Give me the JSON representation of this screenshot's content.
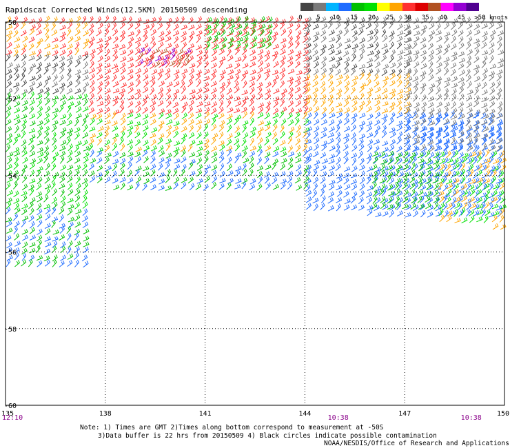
{
  "chart_data": {
    "type": "scatter",
    "title": "Rapidscat Corrected Winds(12.5KM) 20150509 descending",
    "xlim": [
      135,
      150
    ],
    "ylim": [
      -60,
      -50
    ],
    "x_ticks": [
      "135",
      "138",
      "141",
      "144",
      "147",
      "150"
    ],
    "y_ticks": [
      "-50",
      "-52",
      "-54",
      "-56",
      "-58",
      "-60"
    ],
    "grid": true,
    "legend": {
      "placement": "top-right",
      "labels": [
        "0",
        "5",
        "10",
        "15",
        "20",
        "25",
        "30",
        "35",
        "40",
        "45",
        ">50 knots"
      ],
      "colors": [
        "#444444",
        "#7a7a7a",
        "#00b4ff",
        "#1e6bff",
        "#00c000",
        "#00e000",
        "#ffff00",
        "#ffa500",
        "#ff3030",
        "#dd0000",
        "#b05020",
        "#ff00ff",
        "#9400d3",
        "#500090"
      ]
    },
    "time_labels": [
      {
        "x": 135,
        "label": "12:10"
      },
      {
        "x": 145,
        "label": "10:38"
      },
      {
        "x": 149,
        "label": "10:38"
      }
    ],
    "speed_bins": [
      0,
      5,
      10,
      15,
      20,
      25,
      30,
      35,
      40,
      45,
      50
    ],
    "wind_regions": [
      {
        "lon": [
          135,
          137.5
        ],
        "lat": [
          -51.0,
          -50.0
        ],
        "speed": 30
      },
      {
        "lon": [
          135,
          137.5
        ],
        "lat": [
          -52.0,
          -51.0
        ],
        "speed": 5
      },
      {
        "lon": [
          135,
          137.5
        ],
        "lat": [
          -53.5,
          -52.0
        ],
        "speed": 20
      },
      {
        "lon": [
          135,
          137.5
        ],
        "lat": [
          -55.0,
          -53.5
        ],
        "speed": 20
      },
      {
        "lon": [
          135,
          137.5
        ],
        "lat": [
          -56.5,
          -55.0
        ],
        "speed": 15
      },
      {
        "lon": [
          137.5,
          144
        ],
        "lat": [
          -51.0,
          -50.0
        ],
        "speed": 32
      },
      {
        "lon": [
          139,
          140.5
        ],
        "lat": [
          -51.3,
          -50.8
        ],
        "speed": 45
      },
      {
        "lon": [
          137.5,
          144
        ],
        "lat": [
          -52.5,
          -51.0
        ],
        "speed": 33
      },
      {
        "lon": [
          137.5,
          144
        ],
        "lat": [
          -53.5,
          -52.5
        ],
        "speed": 25
      },
      {
        "lon": [
          137.5,
          144
        ],
        "lat": [
          -54.5,
          -53.5
        ],
        "speed": 15
      },
      {
        "lon": [
          141,
          143
        ],
        "lat": [
          -50.8,
          -50.0
        ],
        "speed": 20
      },
      {
        "lon": [
          144,
          147
        ],
        "lat": [
          -51.5,
          -50.0
        ],
        "speed": 5
      },
      {
        "lon": [
          144,
          147
        ],
        "lat": [
          -52.5,
          -51.5
        ],
        "speed": 28
      },
      {
        "lon": [
          144,
          150
        ],
        "lat": [
          -55.2,
          -52.5
        ],
        "speed": 12
      },
      {
        "lon": [
          147,
          150
        ],
        "lat": [
          -52.5,
          -50.0
        ],
        "speed": 8
      },
      {
        "lon": [
          147,
          150
        ],
        "lat": [
          -53.5,
          -52.5
        ],
        "speed": 10
      },
      {
        "lon": [
          146,
          148
        ],
        "lat": [
          -55.0,
          -53.5
        ],
        "speed": 18
      },
      {
        "lon": [
          148,
          150
        ],
        "lat": [
          -55.5,
          -53.5
        ],
        "speed": 25
      }
    ]
  },
  "notes": {
    "line1": "Note: 1) Times are GMT 2)Times along bottom correspond to measurement at -50S",
    "line2": "3)Data buffer is 22 hrs from 20150509 4) Black circles indicate possible contamination",
    "credit": "NOAA/NESDIS/Office of Research and Applications"
  }
}
